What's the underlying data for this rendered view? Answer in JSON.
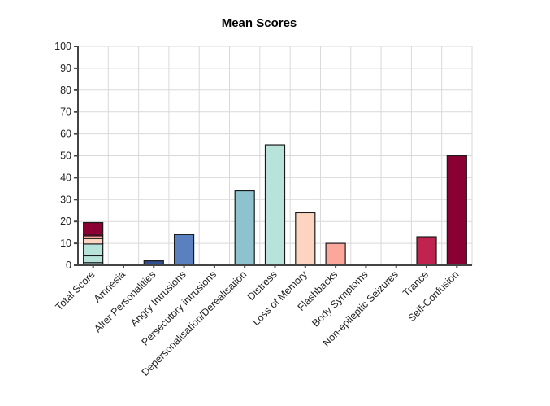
{
  "chart_data": {
    "type": "bar",
    "title": "Mean Scores",
    "xlabel": "",
    "ylabel": "",
    "ylim": [
      0,
      100
    ],
    "yticks": [
      0,
      10,
      20,
      30,
      40,
      50,
      60,
      70,
      80,
      90,
      100
    ],
    "grid": true,
    "legend": "none",
    "categories": [
      "Total Score",
      "Amnesia",
      "Alter Personalities",
      "Angry Intrusions",
      "Persecutory intrusions",
      "Depersonalisation/Derealisation",
      "Distress",
      "Loss of Memory",
      "Flashbacks",
      "Body Symptoms",
      "Non-epileptic Seizures",
      "Trance",
      "Self-Confusion"
    ],
    "values": [
      19.5,
      0,
      2,
      14,
      0,
      34,
      55,
      24,
      10,
      0,
      0,
      13,
      50
    ],
    "colors": [
      "#8b0033",
      "#8b0033",
      "#2f4f8f",
      "#5b80bf",
      "#8fc2cf",
      "#8fc2cf",
      "#b8e3da",
      "#fdd3c1",
      "#fca79c",
      "#d6335e",
      "#d6335e",
      "#c0234e",
      "#8b0033"
    ],
    "stack_segments": [
      {
        "from": 0,
        "to": 1.2,
        "color": "#b8e3da"
      },
      {
        "from": 1.2,
        "to": 4.3,
        "color": "#b8e3da"
      },
      {
        "from": 4.3,
        "to": 9.7,
        "color": "#b8e3da"
      },
      {
        "from": 9.7,
        "to": 12.2,
        "color": "#fdd3c1"
      },
      {
        "from": 12.2,
        "to": 13.4,
        "color": "#fca79c"
      },
      {
        "from": 13.4,
        "to": 14.2,
        "color": "#8b0033"
      },
      {
        "from": 14.2,
        "to": 19.5,
        "color": "#8b0033"
      }
    ]
  }
}
